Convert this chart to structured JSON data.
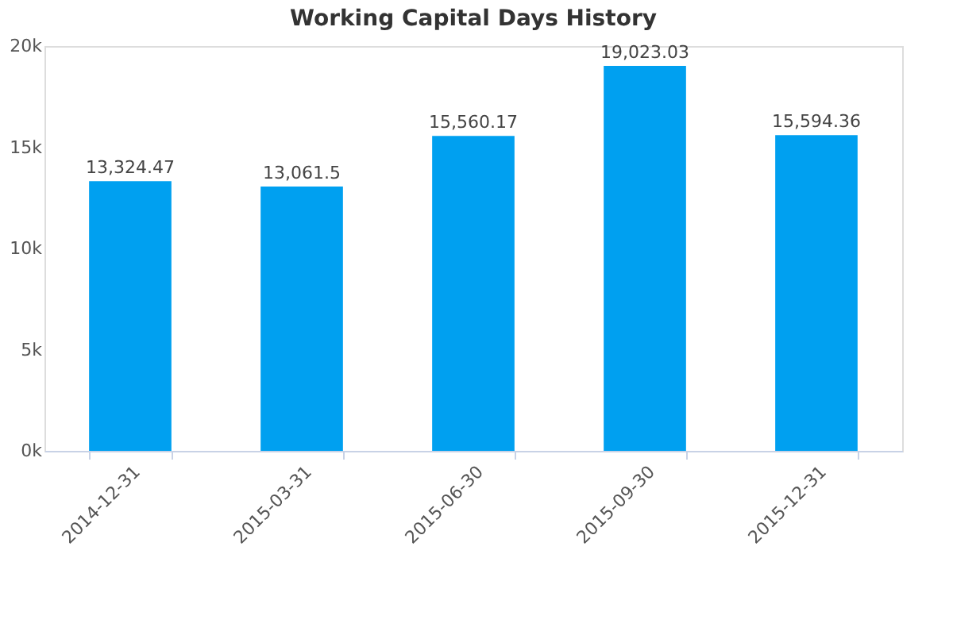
{
  "chart_data": {
    "type": "bar",
    "title": "Working Capital Days History",
    "categories": [
      "2014-12-31",
      "2015-03-31",
      "2015-06-30",
      "2015-09-30",
      "2015-12-31"
    ],
    "values": [
      13324.47,
      13061.5,
      15560.17,
      19023.03,
      15594.36
    ],
    "value_labels": [
      "13,324.47",
      "13,061.5",
      "15,560.17",
      "19,023.03",
      "15,594.36"
    ],
    "color": "#00a0f0",
    "ylim": [
      0,
      20000
    ],
    "yticks": [
      {
        "value": 0,
        "label": "0k"
      },
      {
        "value": 5000,
        "label": "5k"
      },
      {
        "value": 10000,
        "label": "10k"
      },
      {
        "value": 15000,
        "label": "15k"
      },
      {
        "value": 20000,
        "label": "20k"
      }
    ],
    "grid": false
  }
}
